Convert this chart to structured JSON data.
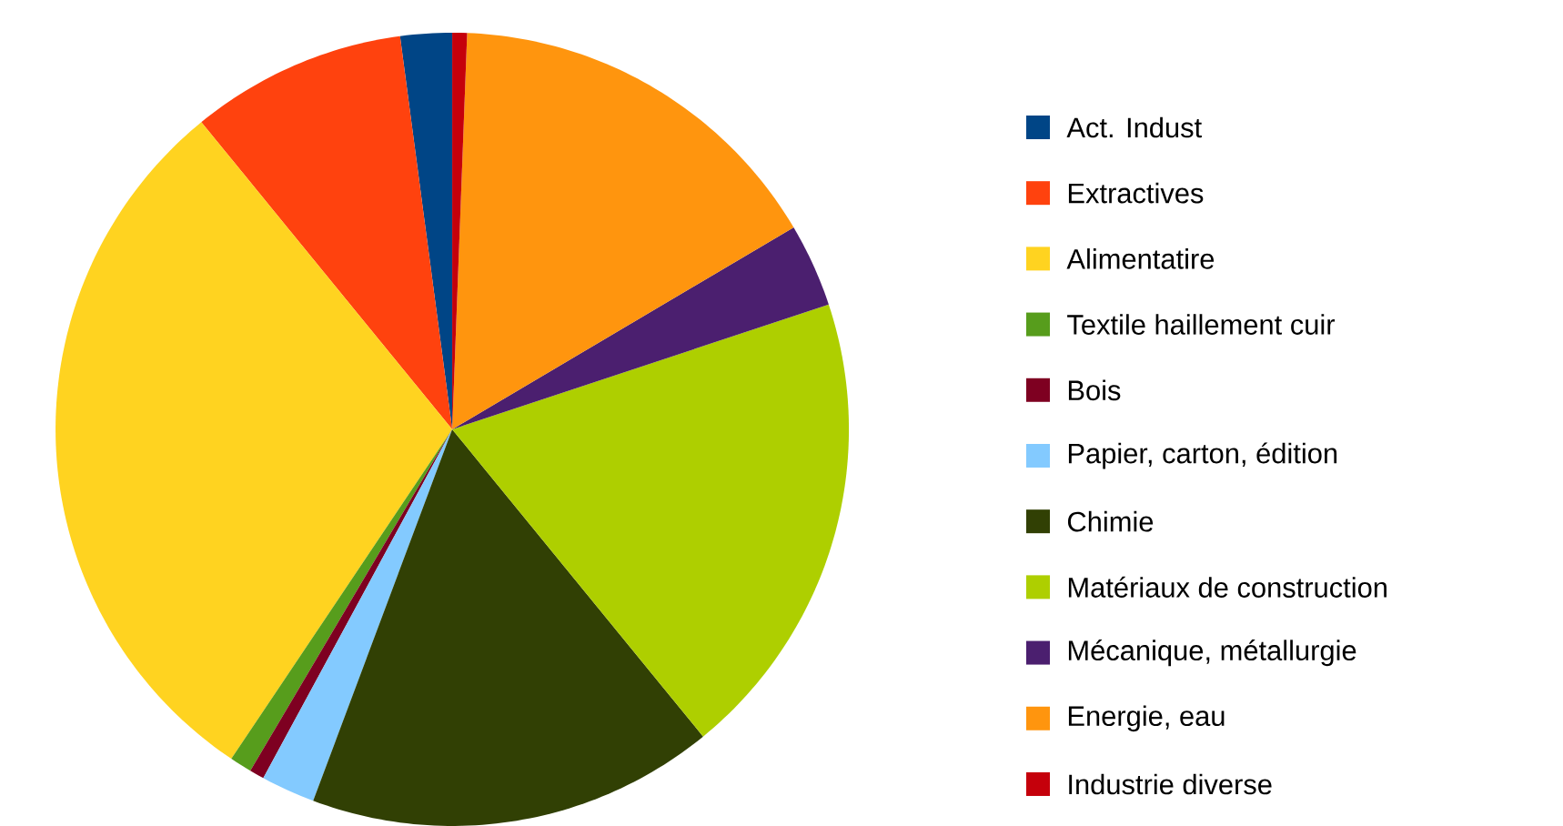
{
  "chart_data": {
    "type": "pie",
    "legend": "right",
    "categories": [
      "Act. Indust",
      "Extractives",
      "Alimentatire",
      "Textile haillement cuir",
      "Bois",
      "Papier, carton, édition",
      "Chimie",
      "Matériaux de construction",
      "Mécanique, métallurgie",
      "Energie, eau",
      "Industrie diverse"
    ],
    "values": [
      2.1,
      8.8,
      29.7,
      0.9,
      0.6,
      2.2,
      16.6,
      19.2,
      3.4,
      15.9,
      0.6
    ],
    "colors": [
      "#004586",
      "#ff420e",
      "#ffd320",
      "#579d1c",
      "#7e0021",
      "#83caff",
      "#314004",
      "#aecf00",
      "#4b1f6f",
      "#ff950e",
      "#c5000b"
    ]
  }
}
